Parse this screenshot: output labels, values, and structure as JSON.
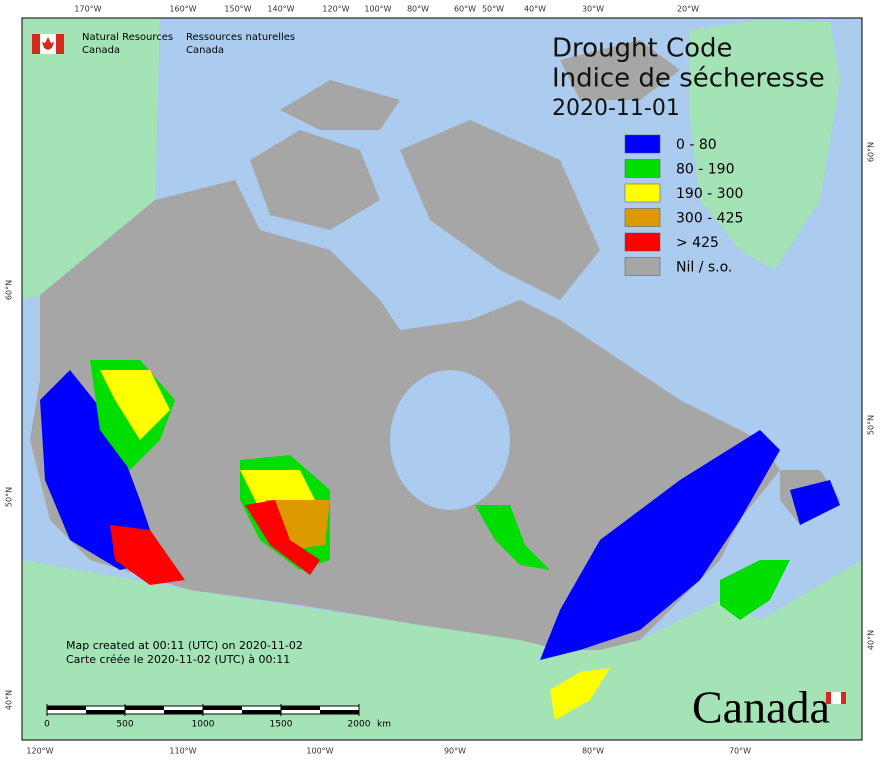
{
  "header": {
    "agency_en": [
      "Natural Resources",
      "Canada"
    ],
    "agency_fr": [
      "Ressources naturelles",
      "Canada"
    ]
  },
  "title": {
    "en": "Drought Code",
    "fr": "Indice de sécheresse",
    "date": "2020-11-01"
  },
  "legend": [
    {
      "label": "0 - 80",
      "color": "#0000ff"
    },
    {
      "label": "80 - 190",
      "color": "#00dd00"
    },
    {
      "label": "190 - 300",
      "color": "#ffff00"
    },
    {
      "label": "300 - 425",
      "color": "#dd9900"
    },
    {
      "label": "> 425",
      "color": "#ff0000"
    },
    {
      "label": "Nil / s.o.",
      "color": "#a6a6a6"
    }
  ],
  "graticule": {
    "top": [
      "170°W",
      "160°W",
      "150°W",
      "140°W",
      "120°W",
      "100°W",
      "80°W",
      "60°W",
      "50°W",
      "40°W",
      "30°W",
      "20°W"
    ],
    "bottom": [
      "120°W",
      "110°W",
      "100°W",
      "90°W",
      "80°W",
      "70°W"
    ],
    "left": [
      "60°N",
      "50°N",
      "40°N"
    ],
    "right": [
      "60°N",
      "50°N",
      "40°N"
    ]
  },
  "credits": [
    "Map created at 00:11 (UTC) on 2020-11-02",
    "Carte créée le 2020-11-02 (UTC) à 00:11"
  ],
  "scale_bar": {
    "ticks": [
      0,
      500,
      1000,
      1500,
      2000
    ],
    "unit": "km"
  },
  "wordmark": "Canada"
}
